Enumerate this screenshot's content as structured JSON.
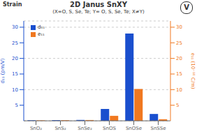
{
  "chart_data": {
    "type": "bar",
    "title": "2D Janus SnXY",
    "subtitle": "(X=O, S, Se, Te; Y= O, S, Se, Te; X≠Y)",
    "categories": [
      "SnO₂",
      "SnS₂",
      "SnSe₂",
      "SnOS",
      "SnOSe",
      "SnSSe"
    ],
    "series": [
      {
        "name": "d₁₁",
        "color": "#1a4fce",
        "values": [
          0.18,
          0.22,
          0.28,
          3.8,
          28.0,
          2.2
        ]
      },
      {
        "name": "e₁₁",
        "color": "#f07820",
        "axis": "y2",
        "values": [
          0.15,
          0.2,
          0.25,
          1.6,
          10.2,
          0.5
        ]
      }
    ],
    "ylabel": "d₁₁ (pm/V)",
    "y2label": "e₁₁ (10⁻¹⁰ C/m)",
    "ylim": [
      0,
      32
    ],
    "yticks": [
      5,
      10,
      15,
      20,
      25,
      30
    ],
    "y2lim": [
      0,
      32
    ],
    "y2ticks": [
      5,
      10,
      15,
      20,
      25,
      30
    ],
    "legend": "upper left",
    "annotations": [
      "Strain",
      "V"
    ]
  }
}
